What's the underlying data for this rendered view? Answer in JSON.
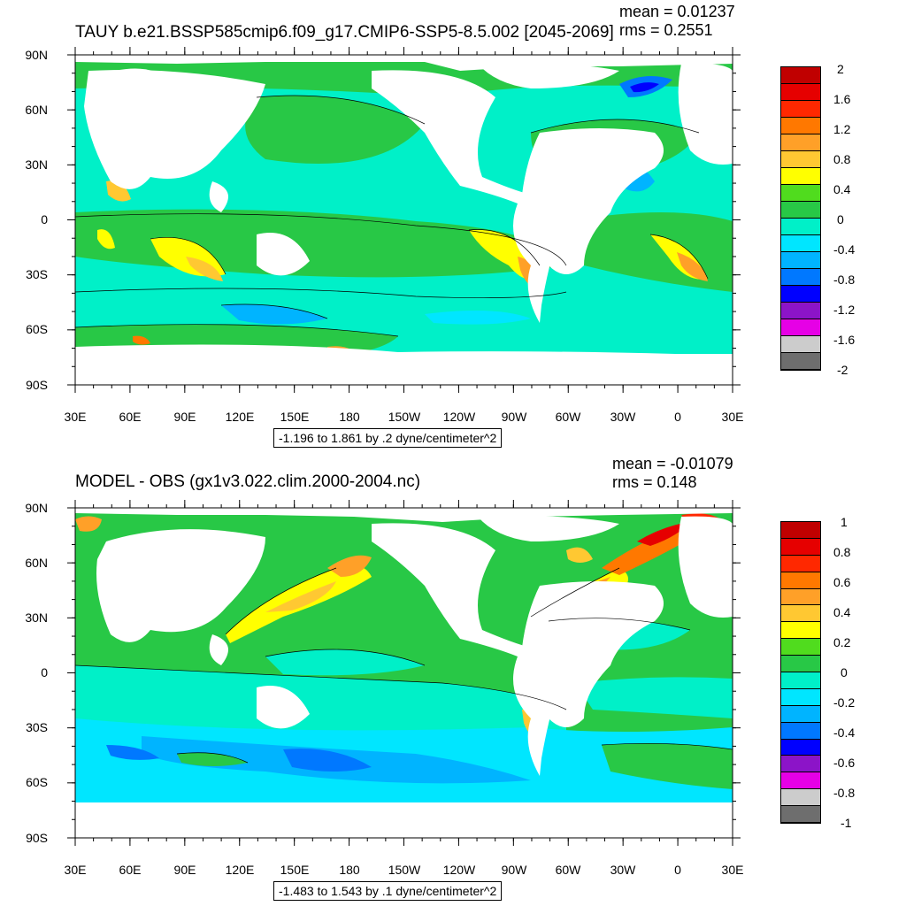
{
  "panels": [
    {
      "title": "TAUY b.e21.BSSP585cmip6.f09_g17.CMIP6-SSP5-8.5.002 [2045-2069]",
      "mean_text": "mean = 0.01237",
      "rms_text": "rms = 0.2551",
      "range_text": "-1.196 to 1.861 by .2 dyne/centimeter^2",
      "lat_labels": [
        "90N",
        "60N",
        "30N",
        "0",
        "30S",
        "60S",
        "90S"
      ],
      "lon_labels": [
        "30E",
        "60E",
        "90E",
        "120E",
        "150E",
        "180",
        "150W",
        "120W",
        "90W",
        "60W",
        "30W",
        "0",
        "30E"
      ],
      "colorbar": {
        "labels": [
          "2",
          "1.6",
          "1.2",
          "0.8",
          "0.4",
          "0",
          "-0.4",
          "-0.8",
          "-1.2",
          "-1.6",
          "-2"
        ],
        "colors": [
          "#c00000",
          "#e60000",
          "#ff2800",
          "#ff7800",
          "#ffa028",
          "#ffc832",
          "#ffff00",
          "#50dc1e",
          "#28c846",
          "#00f0c8",
          "#00e6ff",
          "#00b4ff",
          "#0078ff",
          "#0000ff",
          "#8c14c8",
          "#e600e6",
          "#cccccc",
          "#6e6e6e"
        ]
      }
    },
    {
      "title": "MODEL - OBS (gx1v3.022.clim.2000-2004.nc)",
      "mean_text": "mean = -0.01079",
      "rms_text": "rms = 0.148",
      "range_text": "-1.483 to 1.543 by .1 dyne/centimeter^2",
      "lat_labels": [
        "90N",
        "60N",
        "30N",
        "0",
        "30S",
        "60S",
        "90S"
      ],
      "lon_labels": [
        "30E",
        "60E",
        "90E",
        "120E",
        "150E",
        "180",
        "150W",
        "120W",
        "90W",
        "60W",
        "30W",
        "0",
        "30E"
      ],
      "colorbar": {
        "labels": [
          "1",
          "0.8",
          "0.6",
          "0.4",
          "0.2",
          "0",
          "-0.2",
          "-0.4",
          "-0.6",
          "-0.8",
          "-1"
        ],
        "colors": [
          "#c00000",
          "#e60000",
          "#ff2800",
          "#ff7800",
          "#ffa028",
          "#ffc832",
          "#ffff00",
          "#50dc1e",
          "#28c846",
          "#00f0c8",
          "#00e6ff",
          "#00b4ff",
          "#0078ff",
          "#0000ff",
          "#8c14c8",
          "#e600e6",
          "#cccccc",
          "#6e6e6e"
        ]
      }
    }
  ]
}
